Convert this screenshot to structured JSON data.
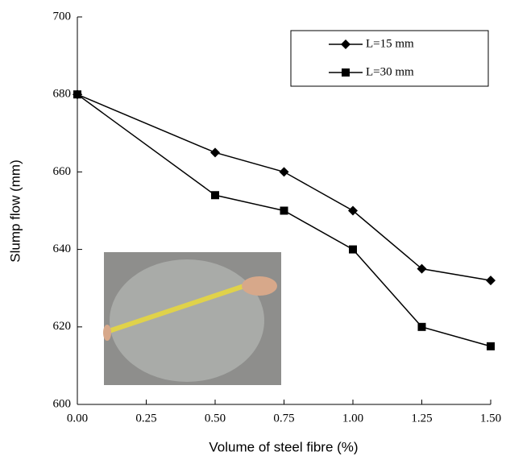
{
  "chart_data": {
    "type": "line",
    "x_label": "Volume of steel fibre (%)",
    "y_label": "Slump flow (mm)",
    "x": [
      0,
      0.5,
      0.75,
      1.0,
      1.25,
      1.5
    ],
    "series": [
      {
        "name": "L=15 mm",
        "color": "#000000",
        "marker": "diamond",
        "values": [
          680,
          665,
          660,
          650,
          635,
          632
        ]
      },
      {
        "name": "L=30 mm",
        "color": "#000000",
        "marker": "square",
        "values": [
          680,
          654,
          650,
          640,
          620,
          615
        ]
      }
    ],
    "xlim": [
      0,
      1.5
    ],
    "xticks": [
      {
        "value": 0,
        "label": "0.00"
      },
      {
        "value": 0.25,
        "label": "0.25"
      },
      {
        "value": 0.5,
        "label": "0.50"
      },
      {
        "value": 0.75,
        "label": "0.75"
      },
      {
        "value": 1.0,
        "label": "1.00"
      },
      {
        "value": 1.25,
        "label": "1.25"
      },
      {
        "value": 1.5,
        "label": "1.50"
      }
    ],
    "ylim": [
      600,
      700
    ],
    "yticks": [
      600,
      620,
      640,
      660,
      680,
      700
    ],
    "grid": false,
    "legend": "upper right"
  }
}
